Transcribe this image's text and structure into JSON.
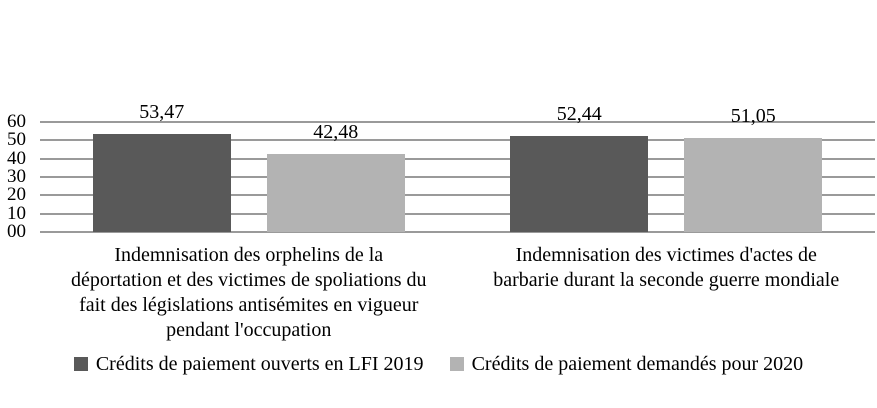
{
  "chart_data": {
    "type": "bar",
    "title": "",
    "xlabel": "",
    "ylabel": "",
    "ylim": [
      0,
      60
    ],
    "ytick_step": 10,
    "yticks": [
      "00",
      "10",
      "20",
      "30",
      "40",
      "50",
      "60"
    ],
    "grid": true,
    "legend_position": "bottom",
    "categories": [
      "Indemnisation des orphelins de la\ndéportation et des victimes de spoliations du\nfait des législations antisémites en vigueur\npendant l'occupation",
      "Indemnisation des victimes d'actes de\nbarbarie durant la seconde guerre mondiale"
    ],
    "series": [
      {
        "name": "Crédits de paiement ouverts en LFI 2019",
        "color": "#595959",
        "values": [
          53.47,
          52.44
        ],
        "labels": [
          "53,47",
          "52,44"
        ]
      },
      {
        "name": "Crédits de paiement demandés pour 2020",
        "color": "#b3b3b3",
        "values": [
          42.48,
          51.05
        ],
        "labels": [
          "42,48",
          "51,05"
        ]
      }
    ]
  },
  "colors": {
    "gridline": "#9a9a9a",
    "text": "#000000",
    "background": "#ffffff"
  }
}
